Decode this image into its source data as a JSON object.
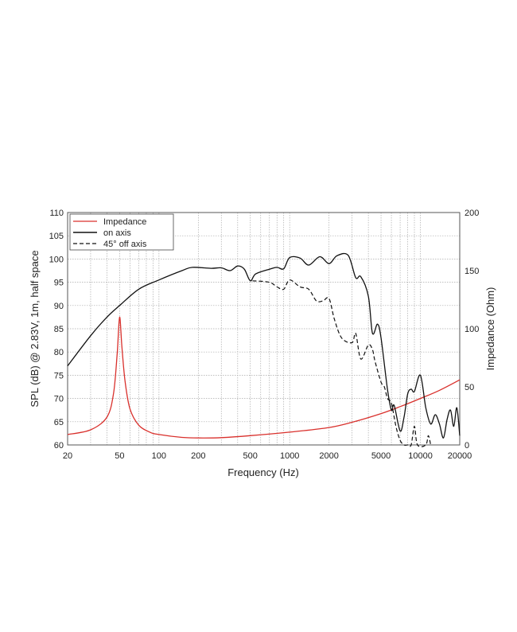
{
  "chart_data": {
    "type": "line",
    "title": "",
    "xlabel": "Frequency (Hz)",
    "ylabel": "SPL (dB) @ 2.83V, 1m, half space",
    "y2label": "Impedance (Ohm)",
    "xscale": "log",
    "xlim": [
      20,
      20000
    ],
    "ylim": [
      60,
      110
    ],
    "y2lim": [
      0,
      200
    ],
    "grid": true,
    "legend_position": "top-left",
    "xticks": [
      20,
      50,
      100,
      200,
      500,
      1000,
      2000,
      5000,
      10000,
      20000
    ],
    "yticks": [
      60,
      65,
      70,
      75,
      80,
      85,
      90,
      95,
      100,
      105,
      110
    ],
    "y2ticks": [
      0,
      50,
      100,
      150,
      200
    ],
    "series": [
      {
        "name": "Impedance",
        "axis": "right",
        "color": "#d9302c",
        "style": "solid",
        "x": [
          20,
          30,
          40,
          45,
          48,
          50,
          52,
          55,
          60,
          70,
          85,
          100,
          150,
          200,
          300,
          500,
          1000,
          2000,
          3000,
          5000,
          7000,
          10000,
          14000,
          20000
        ],
        "y": [
          9,
          13,
          24,
          45,
          80,
          110,
          85,
          55,
          31,
          17,
          11,
          9,
          6.5,
          6,
          6.3,
          8,
          11,
          15,
          19.5,
          27,
          33,
          40,
          47,
          56
        ]
      },
      {
        "name": "on axis",
        "axis": "left",
        "color": "#111111",
        "style": "solid",
        "x": [
          20,
          30,
          40,
          50,
          70,
          100,
          150,
          180,
          250,
          300,
          350,
          400,
          450,
          500,
          550,
          700,
          800,
          900,
          1000,
          1200,
          1400,
          1700,
          2000,
          2300,
          2800,
          3200,
          3500,
          4000,
          4300,
          4700,
          5000,
          5600,
          6000,
          6300,
          7000,
          7500,
          8000,
          8500,
          9000,
          10000,
          11000,
          12000,
          13000,
          14000,
          15000,
          16000,
          17000,
          18000,
          19000,
          20000
        ],
        "y": [
          77,
          83.5,
          87.5,
          90,
          93.5,
          95.5,
          97.5,
          98.2,
          98,
          98.1,
          97.5,
          98.5,
          97.8,
          95.3,
          96.8,
          97.8,
          98.2,
          97.9,
          100.3,
          100.2,
          98.7,
          100.5,
          99,
          100.7,
          100.8,
          96,
          96.2,
          92,
          84,
          86,
          83,
          72,
          67.5,
          68.5,
          63,
          66,
          71,
          72,
          71.5,
          75,
          68,
          64.5,
          66.5,
          64.5,
          61.5,
          65.5,
          67.5,
          64,
          68,
          62
        ]
      },
      {
        "name": "45° off axis",
        "axis": "left",
        "color": "#111111",
        "style": "dashed",
        "x": [
          520,
          700,
          800,
          900,
          1000,
          1200,
          1400,
          1600,
          1800,
          2000,
          2200,
          2500,
          3000,
          3200,
          3500,
          4000,
          4300,
          4500,
          5000,
          5300,
          5600,
          6000,
          6500,
          7000,
          7500,
          8000,
          8500,
          9000,
          9500,
          11000,
          11500,
          12000
        ],
        "y": [
          95.3,
          95,
          94,
          93.5,
          95.5,
          94,
          93.5,
          91,
          91,
          91.5,
          87,
          83,
          82,
          84,
          78.5,
          81.5,
          80.5,
          78,
          73.5,
          72.5,
          70,
          69,
          64,
          61,
          60,
          60,
          60,
          64,
          60,
          60,
          62,
          60
        ]
      }
    ]
  }
}
